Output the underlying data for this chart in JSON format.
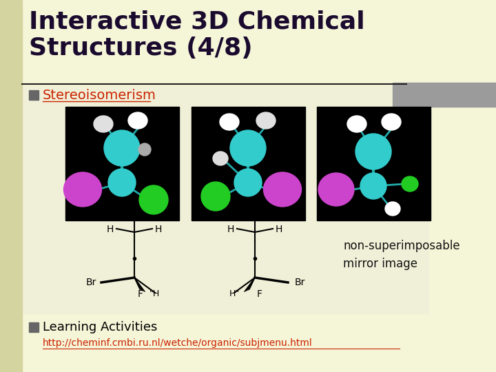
{
  "title": "Interactive 3D Chemical\nStructures (4/8)",
  "title_color": "#1a0a2e",
  "title_fontsize": 26,
  "bg_color": "#f5f5d8",
  "left_bar_color": "#d4d4a0",
  "right_bar_color": "#9b9b9b",
  "bullet_square_color": "#666666",
  "stereo_text": "Stereoisomerism",
  "stereo_color": "#cc2200",
  "stereo_fontsize": 14,
  "nonsuperimposable_text": "non-superimposable\nmirror image",
  "nonsuperimposable_fontsize": 12,
  "nonsuperimposable_color": "#111111",
  "learning_title": "Learning Activities",
  "learning_url": "http://cheminf.cmbi.ru.nl/wetche/organic/subjmenu.html",
  "learning_fontsize": 13,
  "url_color": "#cc2200",
  "content_bg": "#f0f0d8",
  "divider_color": "#222222"
}
